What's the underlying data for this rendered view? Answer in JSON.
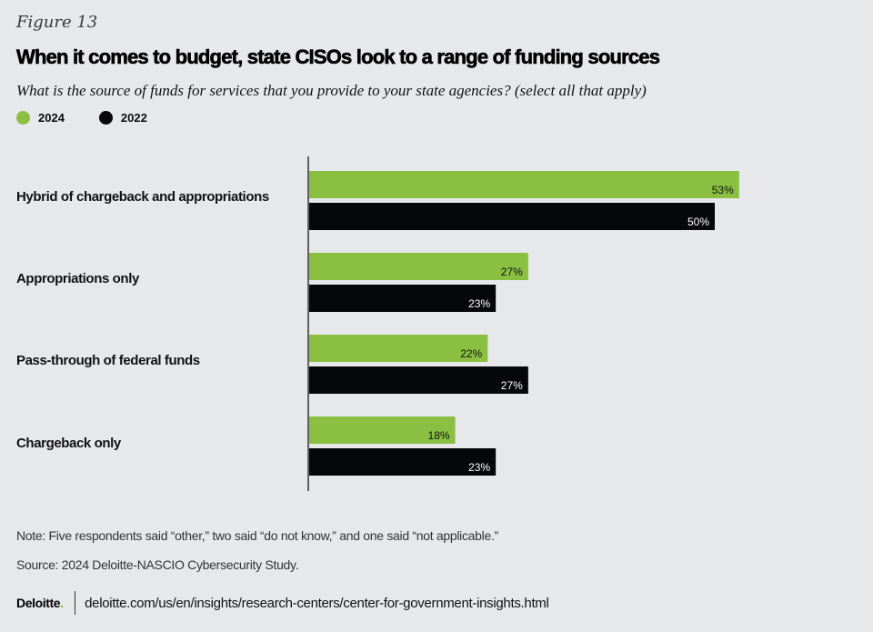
{
  "figure_label": "Figure 13",
  "title": "When it comes to budget, state CISOs look to a range of funding sources",
  "subtitle": "What is the source of funds for services that you provide to your state agencies? (select all that apply)",
  "legend": [
    {
      "label": "2024",
      "color": "#8abf42"
    },
    {
      "label": "2022",
      "color": "#050709"
    }
  ],
  "chart_data": {
    "type": "bar",
    "orientation": "horizontal",
    "title": "When it comes to budget, state CISOs look to a range of funding sources",
    "subtitle": "What is the source of funds for services that you provide to your state agencies? (select all that apply)",
    "xlabel": "",
    "ylabel": "",
    "xlim": [
      0,
      100
    ],
    "grid": false,
    "legend_position": "top-left",
    "categories": [
      "Hybrid of chargeback and appropriations",
      "Appropriations only",
      "Pass-through of federal funds",
      "Chargeback only"
    ],
    "series": [
      {
        "name": "2024",
        "color": "#8abf42",
        "label_color": "#111111",
        "values": [
          53,
          27,
          22,
          18
        ]
      },
      {
        "name": "2022",
        "color": "#050709",
        "label_color": "#ffffff",
        "values": [
          50,
          23,
          27,
          23
        ]
      }
    ],
    "value_suffix": "%"
  },
  "note": "Note: Five respondents said “other,” two said “do not know,” and one said “not applicable.”",
  "source": "Source: 2024 Deloitte-NASCIO Cybersecurity Study.",
  "footer": {
    "logo": "Deloitte",
    "logo_dot": ".",
    "url": "deloitte.com/us/en/insights/research-centers/center-for-government-insights.html"
  }
}
